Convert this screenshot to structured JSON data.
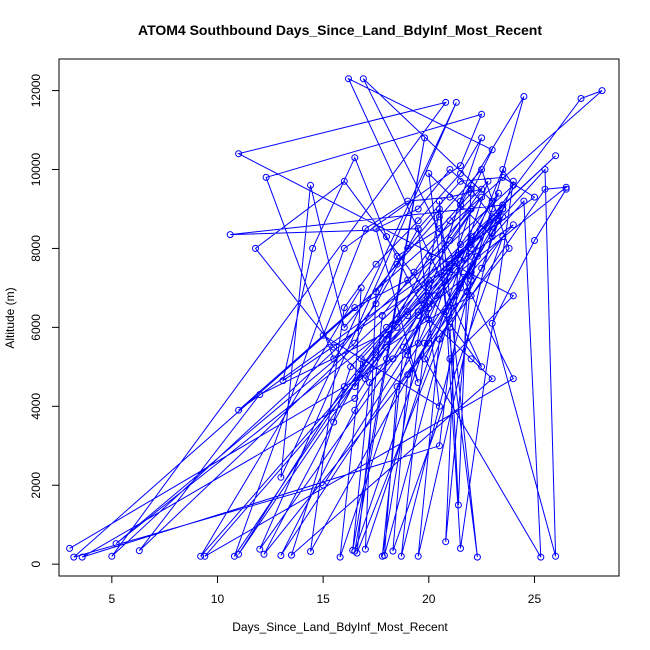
{
  "chart_data": {
    "type": "scatter",
    "title": "ATOM4 Southbound Days_Since_Land_BdyInf_Most_Recent",
    "xlabel": "Days_Since_Land_BdyInf_Most_Recent",
    "ylabel": "Altitude (m)",
    "xlim": [
      2.5,
      29
    ],
    "ylim": [
      -300,
      12800
    ],
    "xticks": [
      5,
      10,
      15,
      20,
      25
    ],
    "yticks": [
      0,
      2000,
      4000,
      6000,
      8000,
      10000,
      12000
    ],
    "color": "#0000ff",
    "grid": false,
    "legend": "none",
    "series": [
      {
        "points": [
          [
            3.0,
            400
          ],
          [
            19.5,
            5600
          ],
          [
            21.0,
            7400
          ],
          [
            22.0,
            7300
          ],
          [
            23.0,
            9000
          ],
          [
            24.5,
            11850
          ],
          [
            21.5,
            9200
          ],
          [
            19.0,
            5300
          ],
          [
            19.5,
            4600
          ],
          [
            17.5,
            8500
          ],
          [
            19.5,
            9000
          ],
          [
            21.0,
            10000
          ],
          [
            22.0,
            9500
          ],
          [
            23.0,
            8800
          ],
          [
            27.2,
            11800
          ],
          [
            28.2,
            12000
          ],
          [
            3.2,
            180
          ],
          [
            15.0,
            2000
          ],
          [
            19.0,
            5400
          ],
          [
            20.0,
            6500
          ],
          [
            22.0,
            8000
          ],
          [
            23.5,
            10000
          ],
          [
            24.0,
            9600
          ],
          [
            5.0,
            200
          ],
          [
            20.8,
            11700
          ],
          [
            11.0,
            10400
          ],
          [
            24.0,
            6800
          ],
          [
            21.0,
            5200
          ],
          [
            20.5,
            3000
          ],
          [
            3.6,
            180
          ],
          [
            16.5,
            4200
          ],
          [
            18.0,
            5500
          ],
          [
            20.0,
            6200
          ],
          [
            22.0,
            6800
          ],
          [
            25.5,
            9500
          ],
          [
            26.5,
            9550
          ],
          [
            5.2,
            520
          ],
          [
            16.5,
            5600
          ],
          [
            18.5,
            7800
          ],
          [
            20.5,
            8500
          ],
          [
            22.0,
            9400
          ],
          [
            23.0,
            10500
          ],
          [
            16.2,
            12300
          ],
          [
            22.5,
            5000
          ],
          [
            16.0,
            9700
          ],
          [
            11.8,
            8000
          ],
          [
            15.5,
            5500
          ],
          [
            17.0,
            4700
          ],
          [
            18.0,
            5700
          ],
          [
            19.0,
            6300
          ],
          [
            20.0,
            7000
          ],
          [
            23.5,
            9100
          ],
          [
            26.0,
            10350
          ],
          [
            6.3,
            340
          ],
          [
            12.0,
            4300
          ],
          [
            18.5,
            6000
          ],
          [
            21.0,
            7500
          ],
          [
            23.0,
            8800
          ],
          [
            16.5,
            4500
          ],
          [
            16.8,
            7000
          ],
          [
            9.2,
            200
          ],
          [
            17.5,
            5300
          ],
          [
            19.5,
            6400
          ],
          [
            21.5,
            7700
          ],
          [
            23.0,
            9200
          ],
          [
            16.9,
            12300
          ],
          [
            24.0,
            4700
          ],
          [
            9.4,
            200
          ],
          [
            18.0,
            5500
          ],
          [
            20.0,
            6600
          ],
          [
            22.0,
            7800
          ],
          [
            23.5,
            9100
          ],
          [
            10.6,
            8350
          ],
          [
            19.5,
            8500
          ],
          [
            20.5,
            4000
          ],
          [
            15.0,
            5800
          ],
          [
            17.0,
            8500
          ],
          [
            19.0,
            9200
          ],
          [
            21.0,
            9300
          ],
          [
            22.5,
            9500
          ],
          [
            10.8,
            200
          ],
          [
            16.0,
            8000
          ],
          [
            21.5,
            10100
          ],
          [
            22.5,
            11400
          ],
          [
            12.3,
            9800
          ],
          [
            15.5,
            5200
          ],
          [
            17.5,
            6600
          ],
          [
            19.5,
            8500
          ],
          [
            21.5,
            9700
          ],
          [
            23.5,
            9800
          ],
          [
            25.0,
            9300
          ],
          [
            11.0,
            3900
          ],
          [
            16.5,
            6500
          ],
          [
            19.0,
            7200
          ],
          [
            21.0,
            8200
          ],
          [
            22.5,
            9300
          ],
          [
            11.0,
            250
          ],
          [
            16.0,
            4500
          ],
          [
            18.0,
            5800
          ],
          [
            20.0,
            7100
          ],
          [
            22.0,
            8200
          ],
          [
            23.5,
            9000
          ],
          [
            12.0,
            380
          ],
          [
            21.3,
            11700
          ],
          [
            13.0,
            2200
          ],
          [
            14.4,
            9600
          ],
          [
            16.0,
            6000
          ],
          [
            18.5,
            7600
          ],
          [
            20.5,
            8800
          ],
          [
            22.5,
            10000
          ],
          [
            23.8,
            8000
          ],
          [
            12.2,
            250
          ],
          [
            15.5,
            3600
          ],
          [
            17.0,
            5100
          ],
          [
            19.0,
            6400
          ],
          [
            21.0,
            7600
          ],
          [
            23.5,
            8800
          ],
          [
            13.0,
            220
          ],
          [
            16.5,
            3900
          ],
          [
            18.0,
            5200
          ],
          [
            19.5,
            6300
          ],
          [
            22.0,
            7400
          ],
          [
            24.0,
            8600
          ],
          [
            13.1,
            4650
          ],
          [
            14.5,
            8000
          ],
          [
            16.5,
            10300
          ],
          [
            18.0,
            8300
          ],
          [
            20.0,
            6200
          ],
          [
            22.0,
            5200
          ],
          [
            23.0,
            4700
          ],
          [
            13.5,
            230
          ],
          [
            16.3,
            5000
          ],
          [
            18.0,
            6000
          ],
          [
            20.0,
            7200
          ],
          [
            22.0,
            8100
          ],
          [
            23.5,
            9000
          ],
          [
            14.4,
            320
          ],
          [
            16.0,
            6500
          ],
          [
            17.5,
            7600
          ],
          [
            19.5,
            8700
          ],
          [
            21.5,
            9900
          ],
          [
            22.5,
            10800
          ],
          [
            15.8,
            180
          ],
          [
            16.8,
            5200
          ],
          [
            18.5,
            6200
          ],
          [
            20.0,
            7800
          ],
          [
            22.0,
            9000
          ],
          [
            16.5,
            330
          ],
          [
            19.8,
            10800
          ],
          [
            16.4,
            350
          ],
          [
            17.2,
            4600
          ],
          [
            18.3,
            5200
          ],
          [
            19.8,
            6600
          ],
          [
            21.5,
            8100
          ],
          [
            23.3,
            9400
          ],
          [
            16.6,
            280
          ],
          [
            17.8,
            6300
          ],
          [
            19.3,
            7400
          ],
          [
            21.0,
            8700
          ],
          [
            22.8,
            9700
          ],
          [
            17.0,
            380
          ],
          [
            17.5,
            6900
          ],
          [
            19.0,
            8000
          ],
          [
            20.5,
            9000
          ],
          [
            17.8,
            200
          ],
          [
            18.8,
            5500
          ],
          [
            20.3,
            6800
          ],
          [
            22.0,
            8300
          ],
          [
            17.9,
            220
          ],
          [
            18.5,
            4500
          ],
          [
            20.0,
            5600
          ],
          [
            21.8,
            6900
          ],
          [
            23.5,
            8300
          ],
          [
            18.3,
            330
          ],
          [
            19.0,
            4800
          ],
          [
            20.8,
            6400
          ],
          [
            22.3,
            7800
          ],
          [
            18.7,
            200
          ],
          [
            19.8,
            5600
          ],
          [
            21.5,
            7100
          ],
          [
            23.0,
            8400
          ],
          [
            19.5,
            200
          ],
          [
            20.5,
            5700
          ],
          [
            22.0,
            7200
          ],
          [
            20.8,
            570
          ],
          [
            21.5,
            9100
          ],
          [
            22.0,
            9600
          ],
          [
            21.4,
            1500
          ],
          [
            21.0,
            6000
          ],
          [
            22.5,
            7500
          ],
          [
            24.0,
            9700
          ],
          [
            21.5,
            400
          ],
          [
            20.5,
            9200
          ],
          [
            22.3,
            180
          ],
          [
            20.0,
            9900
          ],
          [
            23.0,
            8300
          ],
          [
            24.5,
            9200
          ],
          [
            25.3,
            180
          ],
          [
            19.8,
            5200
          ],
          [
            21.5,
            7000
          ],
          [
            23.3,
            8700
          ],
          [
            25.5,
            10000
          ],
          [
            26.0,
            200
          ],
          [
            23.0,
            6100
          ],
          [
            25.0,
            8200
          ],
          [
            26.5,
            9500
          ]
        ],
        "connected": true
      }
    ]
  }
}
